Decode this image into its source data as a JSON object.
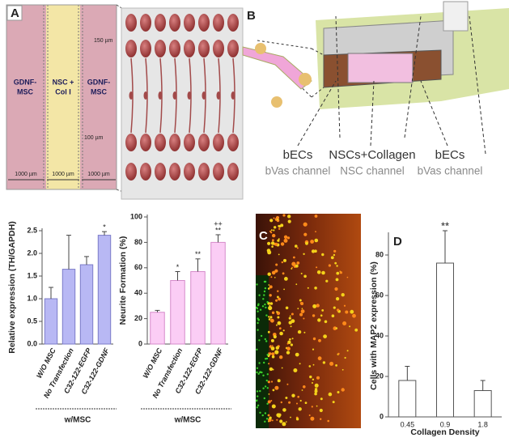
{
  "panels": {
    "A": {
      "letter": "A",
      "left": [
        "GDNF-",
        "MSC"
      ],
      "middle": [
        "NSC +",
        "Col I"
      ],
      "right": [
        "GDNF-",
        "MSC"
      ],
      "dim_top": "150 µm",
      "dim_mid": "100 µm",
      "dim_bottom": [
        "1000 µm",
        "1000 µm",
        "1000 µm"
      ]
    },
    "B": {
      "letter": "B",
      "labels": [
        {
          "title": "bECs",
          "sub": "bVas channel"
        },
        {
          "title": "NSCs+Collagen",
          "sub": "NSC channel"
        },
        {
          "title": "bECs",
          "sub": "bVas channel"
        }
      ]
    },
    "C": {
      "letter": "C"
    },
    "D": {
      "letter": "D"
    }
  },
  "chart_data": [
    {
      "type": "bar",
      "y_label": "Relative expression (TH/GAPDH)",
      "categories": [
        "W/O MSC",
        "No Transfection",
        "C32-122-EGFP",
        "C32-122-GDNF"
      ],
      "values": [
        1.0,
        1.65,
        1.75,
        2.4
      ],
      "errors": [
        0.25,
        0.75,
        0.18,
        0.08
      ],
      "significance": [
        null,
        null,
        null,
        [
          "*"
        ]
      ],
      "group_label": "w/MSC",
      "color": "#b8b8f4",
      "edge": "#7c7cc8",
      "ylim": [
        0,
        2.5
      ],
      "yticks": [
        {
          "value": 0,
          "label": "0.0"
        },
        {
          "value": 0.5,
          "label": "0.5"
        },
        {
          "value": 1,
          "label": "1.0"
        },
        {
          "value": 1.5,
          "label": "1.5"
        },
        {
          "value": 2,
          "label": "2.0"
        },
        {
          "value": 2.5,
          "label": "2.5"
        }
      ]
    },
    {
      "type": "bar",
      "y_label": "Neurite Formation (%)",
      "categories": [
        "W/O MSC",
        "No Transfection",
        "C32-122-EGFP",
        "C32-122-GDNF"
      ],
      "values": [
        25,
        50,
        57,
        80
      ],
      "errors": [
        1.5,
        7,
        10,
        6
      ],
      "significance": [
        null,
        [
          "*"
        ],
        [
          "**"
        ],
        [
          "++",
          "**"
        ]
      ],
      "group_label": "w/MSC",
      "color": "#fbcdf5",
      "edge": "#d68ccb",
      "ylim": [
        0,
        100
      ],
      "yticks": [
        0,
        20,
        40,
        60,
        80,
        100
      ]
    },
    {
      "type": "bar",
      "y_label": "Cells with MAP2 expression (%)",
      "x_label": "Collagen Density",
      "categories": [
        "0.45",
        "0.9",
        "1.8"
      ],
      "values": [
        18,
        76,
        13
      ],
      "errors": [
        7,
        16,
        5
      ],
      "significance": [
        null,
        [
          "**"
        ],
        null
      ],
      "color": "#ffffff",
      "edge": "#555555",
      "ylim": [
        0,
        90
      ],
      "yticks": [
        0,
        20,
        40,
        60,
        80
      ]
    }
  ]
}
